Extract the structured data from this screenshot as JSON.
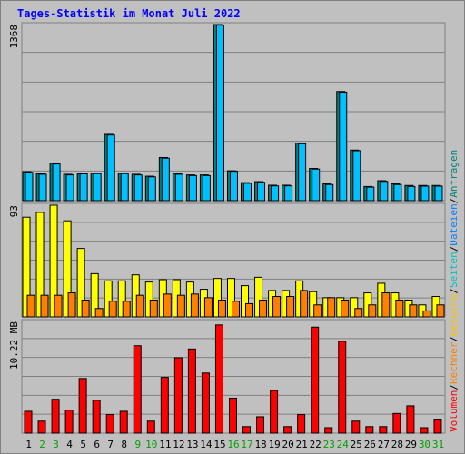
{
  "title": "Tages-Statistik im Monat Juli 2022",
  "colors": {
    "background": "#c0c0c0",
    "grid": "#808080",
    "hits_front": "#00c0ff",
    "hits_back": "#008080",
    "files_front": "#00c0c0",
    "files_back": "#006060",
    "visits": "#ffff00",
    "pages": "#ff8000",
    "sites": "#ff8000",
    "volume": "#ff0000",
    "day_normal": "#000000",
    "day_weekend": "#00a000"
  },
  "chart_data": [
    {
      "type": "bar",
      "panel": "top",
      "y_tick_label": "1368",
      "ylim": [
        0,
        1368
      ],
      "categories": [
        "1",
        "2",
        "3",
        "4",
        "5",
        "6",
        "7",
        "8",
        "9",
        "10",
        "11",
        "12",
        "13",
        "14",
        "15",
        "16",
        "17",
        "18",
        "19",
        "20",
        "21",
        "22",
        "23",
        "24",
        "25",
        "26",
        "27",
        "28",
        "29",
        "30",
        "31"
      ],
      "series": [
        {
          "name": "Anfragen",
          "values": [
            225,
            210,
            290,
            205,
            210,
            212,
            515,
            212,
            205,
            190,
            335,
            210,
            200,
            200,
            1368,
            232,
            140,
            148,
            120,
            120,
            447,
            250,
            130,
            848,
            393,
            110,
            155,
            130,
            118,
            118,
            118
          ]
        },
        {
          "name": "Dateien",
          "values": [
            220,
            205,
            285,
            200,
            208,
            210,
            510,
            210,
            200,
            185,
            330,
            205,
            195,
            195,
            1363,
            228,
            135,
            143,
            115,
            115,
            442,
            245,
            125,
            843,
            388,
            105,
            150,
            125,
            110,
            113,
            113
          ]
        }
      ]
    },
    {
      "type": "bar",
      "panel": "middle",
      "y_tick_label": "93",
      "ylim": [
        0,
        93
      ],
      "categories": [
        "1",
        "2",
        "3",
        "4",
        "5",
        "6",
        "7",
        "8",
        "9",
        "10",
        "11",
        "12",
        "13",
        "14",
        "15",
        "16",
        "17",
        "18",
        "19",
        "20",
        "21",
        "22",
        "23",
        "24",
        "25",
        "26",
        "27",
        "28",
        "29",
        "30",
        "31"
      ],
      "series": [
        {
          "name": "Besuche",
          "values": [
            83,
            87,
            93,
            80,
            57,
            36,
            30,
            30,
            35,
            29,
            31,
            31,
            29,
            23,
            32,
            32,
            26,
            33,
            22,
            22,
            30,
            21,
            16,
            16,
            16,
            20,
            28,
            20,
            14,
            10,
            17
          ]
        },
        {
          "name": "Seiten",
          "values": [
            18,
            18,
            18,
            20,
            14,
            7,
            13,
            13,
            18,
            14,
            19,
            18,
            19,
            16,
            14,
            13,
            11,
            14,
            17,
            17,
            22,
            10,
            16,
            14,
            7,
            10,
            20,
            14,
            10,
            5,
            10
          ]
        },
        {
          "name": "Rechner",
          "values": [
            18,
            18,
            18,
            20,
            14,
            7,
            13,
            13,
            18,
            14,
            19,
            18,
            19,
            16,
            14,
            13,
            11,
            14,
            17,
            17,
            22,
            10,
            16,
            14,
            7,
            10,
            20,
            14,
            10,
            5,
            10
          ]
        }
      ]
    },
    {
      "type": "bar",
      "panel": "bottom",
      "y_tick_label": "10.22 MB",
      "ylim": [
        0,
        10.22
      ],
      "unit": "MB",
      "categories": [
        "1",
        "2",
        "3",
        "4",
        "5",
        "6",
        "7",
        "8",
        "9",
        "10",
        "11",
        "12",
        "13",
        "14",
        "15",
        "16",
        "17",
        "18",
        "19",
        "20",
        "21",
        "22",
        "23",
        "24",
        "25",
        "26",
        "27",
        "28",
        "29",
        "30",
        "31"
      ],
      "series": [
        {
          "name": "Volumen",
          "values": [
            2.0,
            1.1,
            3.1,
            2.1,
            5.0,
            3.0,
            1.7,
            2.0,
            8.0,
            1.1,
            5.1,
            6.9,
            7.7,
            5.5,
            9.9,
            3.2,
            0.6,
            1.5,
            3.9,
            0.6,
            1.7,
            9.7,
            0.5,
            8.4,
            1.1,
            0.6,
            0.6,
            1.8,
            2.5,
            0.5,
            1.2
          ]
        }
      ]
    }
  ],
  "days": [
    {
      "label": "1",
      "weekend": false
    },
    {
      "label": "2",
      "weekend": true
    },
    {
      "label": "3",
      "weekend": true
    },
    {
      "label": "4",
      "weekend": false
    },
    {
      "label": "5",
      "weekend": false
    },
    {
      "label": "6",
      "weekend": false
    },
    {
      "label": "7",
      "weekend": false
    },
    {
      "label": "8",
      "weekend": false
    },
    {
      "label": "9",
      "weekend": true
    },
    {
      "label": "10",
      "weekend": true
    },
    {
      "label": "11",
      "weekend": false
    },
    {
      "label": "12",
      "weekend": false
    },
    {
      "label": "13",
      "weekend": false
    },
    {
      "label": "14",
      "weekend": false
    },
    {
      "label": "15",
      "weekend": false
    },
    {
      "label": "16",
      "weekend": true
    },
    {
      "label": "17",
      "weekend": true
    },
    {
      "label": "18",
      "weekend": false
    },
    {
      "label": "19",
      "weekend": false
    },
    {
      "label": "20",
      "weekend": false
    },
    {
      "label": "21",
      "weekend": false
    },
    {
      "label": "22",
      "weekend": false
    },
    {
      "label": "23",
      "weekend": true
    },
    {
      "label": "24",
      "weekend": true
    },
    {
      "label": "25",
      "weekend": false
    },
    {
      "label": "26",
      "weekend": false
    },
    {
      "label": "27",
      "weekend": false
    },
    {
      "label": "28",
      "weekend": false
    },
    {
      "label": "29",
      "weekend": false
    },
    {
      "label": "30",
      "weekend": true
    },
    {
      "label": "31",
      "weekend": true
    }
  ],
  "legend_right_top": [
    {
      "text": "Anfragen",
      "color": "#008080"
    },
    {
      "text": "/",
      "color": "#000000"
    },
    {
      "text": "Dateien",
      "color": "#0080ff"
    },
    {
      "text": "/",
      "color": "#000000"
    },
    {
      "text": "Seiten",
      "color": "#00c0c0"
    },
    {
      "text": "/",
      "color": "#000000"
    },
    {
      "text": "Besuche",
      "color": "#ffc000"
    }
  ],
  "legend_right_bottom": [
    {
      "text": "/",
      "color": "#000000"
    },
    {
      "text": "Rechner",
      "color": "#ff8000"
    },
    {
      "text": "/",
      "color": "#000000"
    },
    {
      "text": "Volumen",
      "color": "#ff0000"
    }
  ]
}
